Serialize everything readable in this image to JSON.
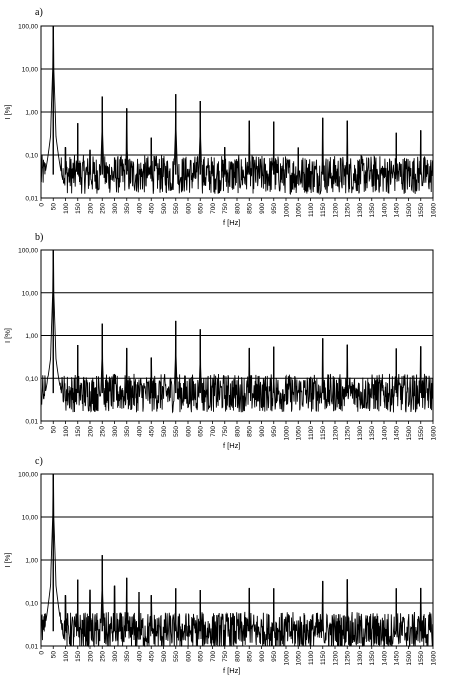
{
  "chart_data": [
    {
      "type": "line",
      "panel_label": "a)",
      "xlabel": "f [Hz]",
      "ylabel": "I [%]",
      "y_scale": "log",
      "ylim": [
        0.01,
        100
      ],
      "y_ticks": [
        "0,01",
        "0,10",
        "1,00",
        "10,00",
        "100,00"
      ],
      "xlim": [
        0,
        1600
      ],
      "x_ticks": [
        "0",
        "50",
        "100",
        "150",
        "200",
        "250",
        "300",
        "350",
        "400",
        "450",
        "500",
        "550",
        "600",
        "650",
        "700",
        "750",
        "800",
        "850",
        "900",
        "950",
        "1000",
        "1050",
        "1100",
        "1150",
        "1200",
        "1250",
        "1300",
        "1350",
        "1400",
        "1450",
        "1500",
        "1550",
        "1600"
      ],
      "grid": "horizontal",
      "noise_floor": 0.035,
      "peaks": [
        {
          "x": 50,
          "y": 100
        },
        {
          "x": 100,
          "y": 0.15
        },
        {
          "x": 150,
          "y": 0.55
        },
        {
          "x": 200,
          "y": 0.13
        },
        {
          "x": 250,
          "y": 2.3
        },
        {
          "x": 350,
          "y": 1.2
        },
        {
          "x": 450,
          "y": 0.25
        },
        {
          "x": 550,
          "y": 2.6
        },
        {
          "x": 650,
          "y": 1.8
        },
        {
          "x": 750,
          "y": 0.15
        },
        {
          "x": 850,
          "y": 0.62
        },
        {
          "x": 950,
          "y": 0.6
        },
        {
          "x": 1050,
          "y": 0.15
        },
        {
          "x": 1150,
          "y": 0.72
        },
        {
          "x": 1250,
          "y": 0.62
        },
        {
          "x": 1450,
          "y": 0.33
        },
        {
          "x": 1550,
          "y": 0.37
        }
      ]
    },
    {
      "type": "line",
      "panel_label": "b)",
      "xlabel": "f [Hz]",
      "ylabel": "I [%]",
      "y_scale": "log",
      "ylim": [
        0.01,
        100
      ],
      "y_ticks": [
        "0,01",
        "0,10",
        "1,00",
        "10,00",
        "100,00"
      ],
      "xlim": [
        0,
        1600
      ],
      "x_ticks": [
        "0",
        "50",
        "100",
        "150",
        "200",
        "250",
        "300",
        "350",
        "400",
        "450",
        "500",
        "550",
        "600",
        "650",
        "700",
        "750",
        "800",
        "850",
        "900",
        "950",
        "1000",
        "1050",
        "1100",
        "1150",
        "1200",
        "1250",
        "1300",
        "1350",
        "1400",
        "1450",
        "1500",
        "1550",
        "1600"
      ],
      "grid": "horizontal",
      "noise_floor": 0.045,
      "peaks": [
        {
          "x": 50,
          "y": 100
        },
        {
          "x": 150,
          "y": 0.6
        },
        {
          "x": 250,
          "y": 1.9
        },
        {
          "x": 350,
          "y": 0.5
        },
        {
          "x": 450,
          "y": 0.3
        },
        {
          "x": 550,
          "y": 2.2
        },
        {
          "x": 650,
          "y": 1.4
        },
        {
          "x": 850,
          "y": 0.5
        },
        {
          "x": 950,
          "y": 0.55
        },
        {
          "x": 1150,
          "y": 0.85
        },
        {
          "x": 1250,
          "y": 0.6
        },
        {
          "x": 1450,
          "y": 0.5
        },
        {
          "x": 1550,
          "y": 0.55
        }
      ]
    },
    {
      "type": "line",
      "panel_label": "c)",
      "xlabel": "f [Hz]",
      "ylabel": "I [%]",
      "y_scale": "log",
      "ylim": [
        0.01,
        100
      ],
      "y_ticks": [
        "0,01",
        "0,10",
        "1,00",
        "10,00",
        "100,00"
      ],
      "xlim": [
        0,
        1600
      ],
      "x_ticks": [
        "0",
        "50",
        "100",
        "150",
        "200",
        "250",
        "300",
        "350",
        "400",
        "450",
        "500",
        "550",
        "600",
        "650",
        "700",
        "750",
        "800",
        "850",
        "900",
        "950",
        "1000",
        "1050",
        "1100",
        "1150",
        "1200",
        "1250",
        "1300",
        "1350",
        "1400",
        "1450",
        "1500",
        "1550",
        "1600"
      ],
      "grid": "horizontal",
      "noise_floor": 0.022,
      "peaks": [
        {
          "x": 50,
          "y": 100
        },
        {
          "x": 100,
          "y": 0.15
        },
        {
          "x": 150,
          "y": 0.35
        },
        {
          "x": 200,
          "y": 0.2
        },
        {
          "x": 250,
          "y": 1.3
        },
        {
          "x": 300,
          "y": 0.25
        },
        {
          "x": 350,
          "y": 0.38
        },
        {
          "x": 400,
          "y": 0.18
        },
        {
          "x": 450,
          "y": 0.15
        },
        {
          "x": 550,
          "y": 0.22
        },
        {
          "x": 650,
          "y": 0.2
        },
        {
          "x": 850,
          "y": 0.22
        },
        {
          "x": 950,
          "y": 0.22
        },
        {
          "x": 1150,
          "y": 0.32
        },
        {
          "x": 1250,
          "y": 0.35
        },
        {
          "x": 1450,
          "y": 0.22
        },
        {
          "x": 1550,
          "y": 0.22
        }
      ]
    }
  ]
}
